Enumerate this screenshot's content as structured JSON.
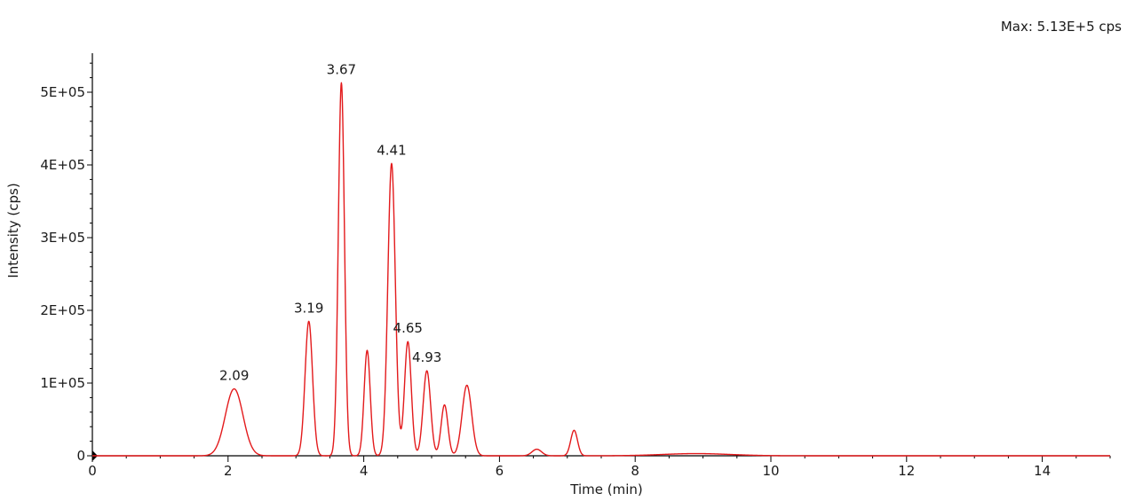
{
  "chart_data": {
    "type": "line",
    "max_label": "Max: 5.13E+5 cps",
    "xlabel": "Time (min)",
    "ylabel": "Intensity (cps)",
    "xlim": [
      0,
      15
    ],
    "ylim": [
      0,
      550000
    ],
    "x_ticks": [
      {
        "value": 0,
        "label": "0"
      },
      {
        "value": 2,
        "label": "2"
      },
      {
        "value": 4,
        "label": "4"
      },
      {
        "value": 6,
        "label": "6"
      },
      {
        "value": 8,
        "label": "8"
      },
      {
        "value": 10,
        "label": "10"
      },
      {
        "value": 12,
        "label": "12"
      },
      {
        "value": 14,
        "label": "14"
      }
    ],
    "y_ticks": [
      {
        "value": 0,
        "label": "0"
      },
      {
        "value": 100000,
        "label": "1E+05"
      },
      {
        "value": 200000,
        "label": "2E+05"
      },
      {
        "value": 300000,
        "label": "3E+05"
      },
      {
        "value": 400000,
        "label": "4E+05"
      },
      {
        "value": 500000,
        "label": "5E+05"
      }
    ],
    "series_color": "#e31a1c",
    "peaks": [
      {
        "time": 2.09,
        "height": 92000,
        "width": 0.13,
        "label": "2.09"
      },
      {
        "time": 3.19,
        "height": 185000,
        "width": 0.055,
        "label": "3.19"
      },
      {
        "time": 3.67,
        "height": 513000,
        "width": 0.045,
        "label": "3.67"
      },
      {
        "time": 4.05,
        "height": 145000,
        "width": 0.045,
        "label": ""
      },
      {
        "time": 4.41,
        "height": 402000,
        "width": 0.055,
        "label": "4.41"
      },
      {
        "time": 4.65,
        "height": 157000,
        "width": 0.05,
        "label": "4.65"
      },
      {
        "time": 4.93,
        "height": 117000,
        "width": 0.055,
        "label": "4.93"
      },
      {
        "time": 5.19,
        "height": 70000,
        "width": 0.05,
        "label": ""
      },
      {
        "time": 5.52,
        "height": 97000,
        "width": 0.07,
        "label": ""
      },
      {
        "time": 6.55,
        "height": 9000,
        "width": 0.07,
        "label": ""
      },
      {
        "time": 7.1,
        "height": 35000,
        "width": 0.05,
        "label": ""
      },
      {
        "time": 8.9,
        "height": 3000,
        "width": 0.5,
        "label": ""
      }
    ]
  }
}
